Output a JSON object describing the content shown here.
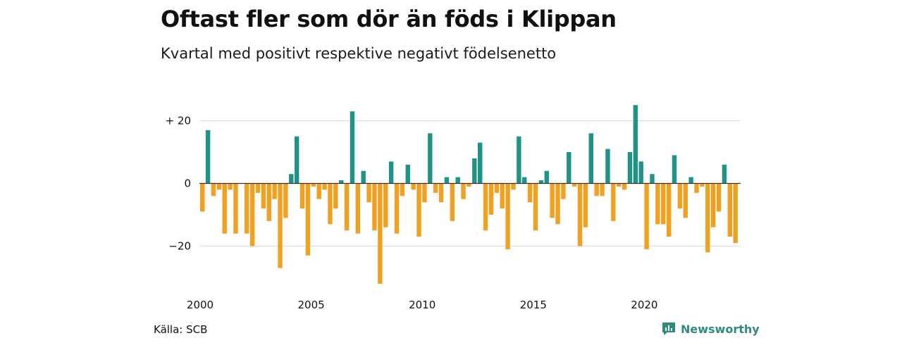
{
  "title": "Oftast fler som dör än föds i Klippan",
  "subtitle": "Kvartal med positivt respektive negativt födelsenetto",
  "source": "Källa: SCB",
  "brand": {
    "name": "Newsworthy",
    "icon": "bar-chart-logo-icon"
  },
  "colors": {
    "positive": "#1f9486",
    "negative": "#f2a01f",
    "grid": "#dddddd",
    "zero": "#333333"
  },
  "chart_data": {
    "type": "bar",
    "x_unit": "quarter",
    "start": "2000 Q1",
    "values": [
      -9,
      17,
      -4,
      -2,
      -16,
      -2,
      -16,
      0,
      -16,
      -20,
      -3,
      -8,
      -12,
      -5,
      -27,
      -11,
      3,
      15,
      -8,
      -23,
      -1,
      -5,
      -2,
      -13,
      -8,
      1,
      -15,
      23,
      -16,
      4,
      -6,
      -15,
      -32,
      -14,
      7,
      -16,
      -4,
      6,
      -2,
      -17,
      -6,
      16,
      -3,
      -6,
      2,
      -12,
      2,
      -5,
      -1,
      8,
      13,
      -15,
      -10,
      -3,
      -8,
      -21,
      -2,
      15,
      2,
      -6,
      -15,
      1,
      4,
      -11,
      -13,
      -5,
      10,
      -1,
      -20,
      -14,
      16,
      -4,
      -4,
      11,
      -12,
      -1,
      -2,
      10,
      25,
      7,
      -21,
      3,
      -13,
      -13,
      -17,
      9,
      -8,
      -11,
      2,
      -3,
      -1,
      -22,
      -14,
      -9,
      6,
      -17,
      -19
    ],
    "ylim": [
      -33,
      26
    ],
    "y_ticks": [
      {
        "value": 20,
        "label": "+ 20"
      },
      {
        "value": 0,
        "label": "0"
      },
      {
        "value": -20,
        "label": "−20"
      }
    ],
    "x_ticks": [
      {
        "year": 2000,
        "label": "2000"
      },
      {
        "year": 2005,
        "label": "2005"
      },
      {
        "year": 2010,
        "label": "2010"
      },
      {
        "year": 2015,
        "label": "2015"
      },
      {
        "year": 2020,
        "label": "2020"
      }
    ],
    "grid": true,
    "legend": "none"
  }
}
